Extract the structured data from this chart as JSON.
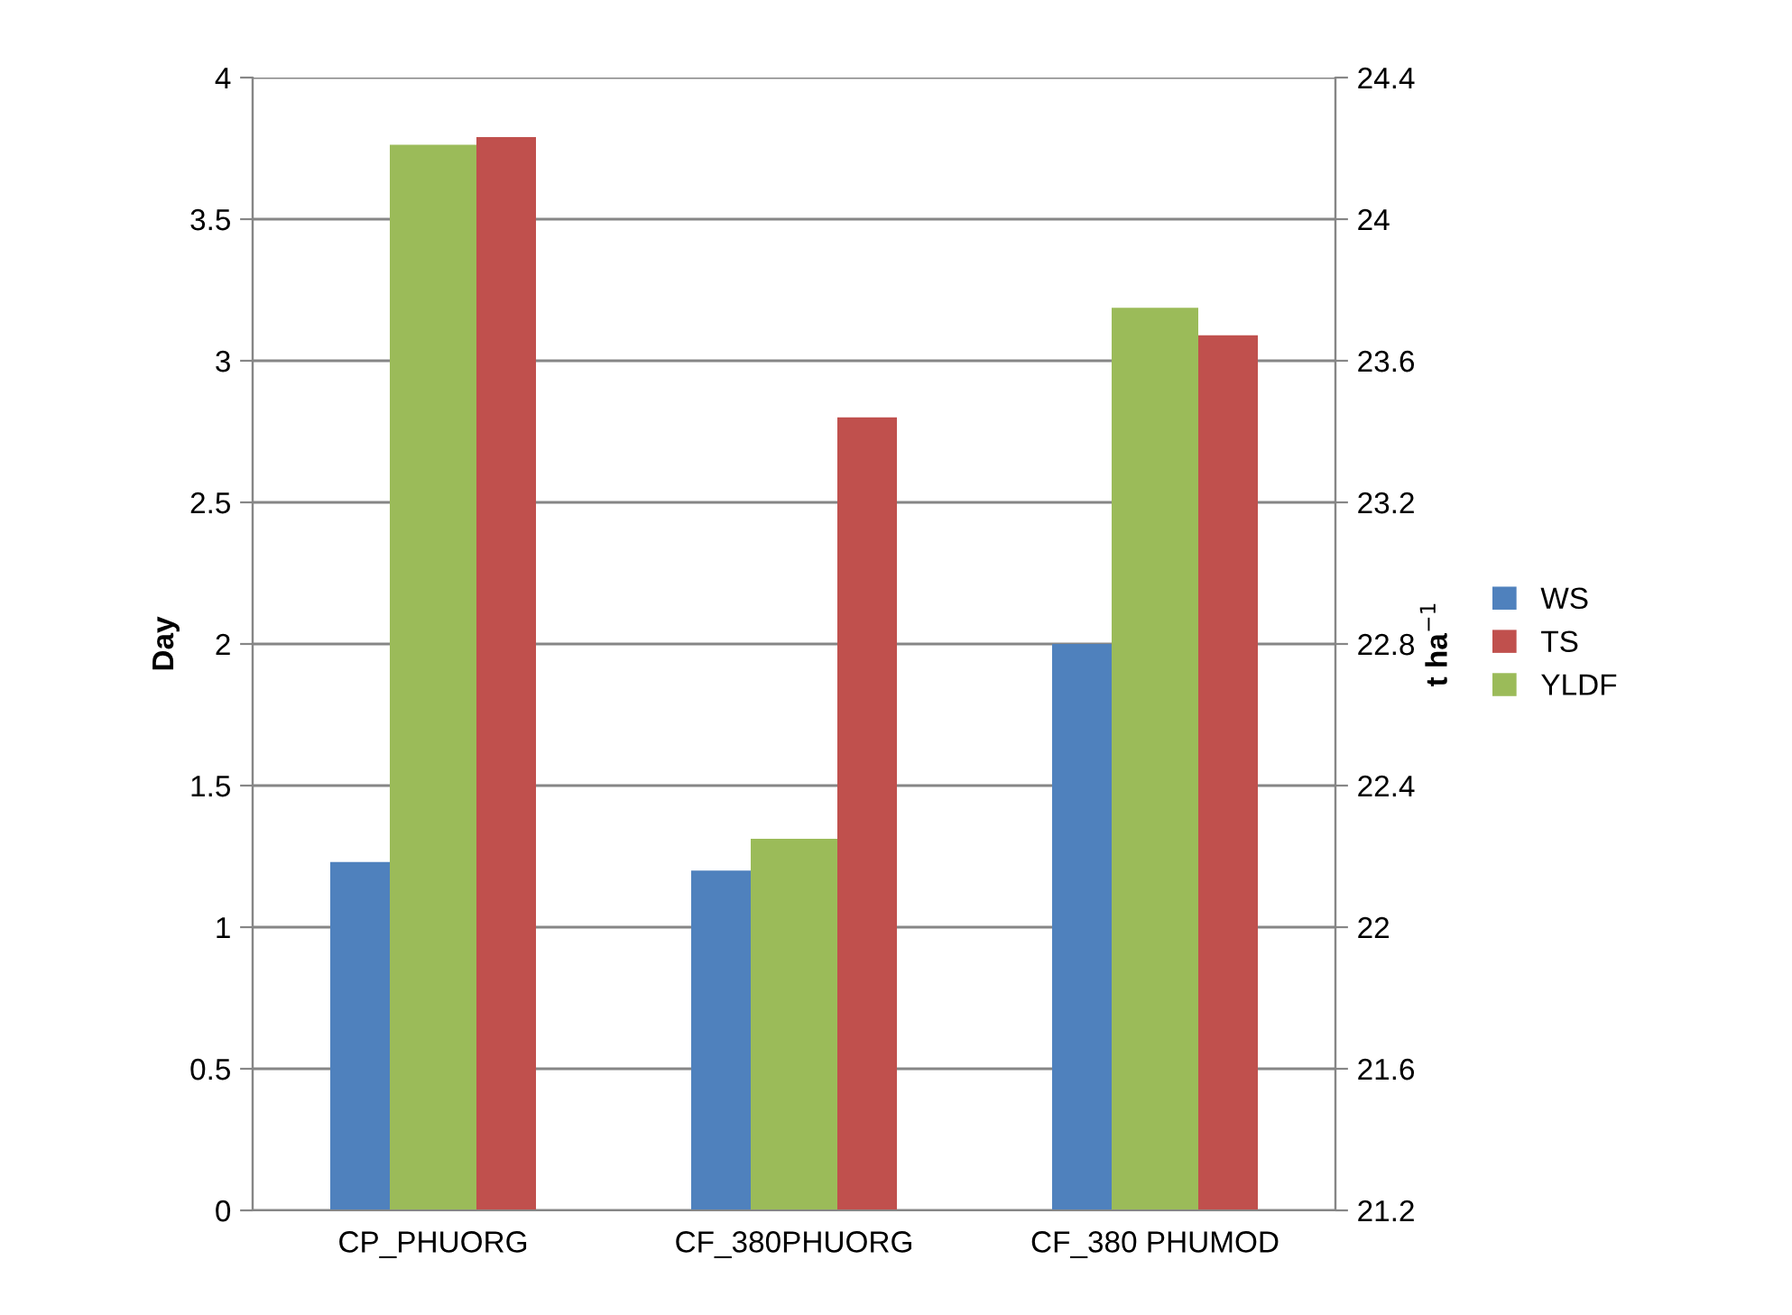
{
  "chart_data": {
    "type": "bar",
    "categories": [
      "CP_PHUORG",
      "CF_380PHUORG",
      "CF_380 PHUMOD"
    ],
    "ylabel": "Day",
    "y2label": "t ha$^{−1}$",
    "series": [
      {
        "name": "WS",
        "color": "#4f81bd",
        "values": [
          1.23,
          1.2,
          2.0
        ]
      },
      {
        "name": "TS",
        "color": "#c0504d",
        "values": [
          3.79,
          2.8,
          3.09
        ]
      },
      {
        "name": "YLDF",
        "color": "#9bbb59",
        "values": [
          24.21,
          22.25,
          23.75
        ],
        "axis": "y2"
      }
    ],
    "ylim": [
      0,
      4
    ],
    "yticks": [
      0,
      0.5,
      1,
      1.5,
      2,
      2.5,
      3,
      3.5,
      4
    ],
    "y2lim": [
      21.2,
      24.4
    ],
    "y2ticks": [
      21.2,
      21.6,
      22,
      22.4,
      22.8,
      23.2,
      23.6,
      24,
      24.4
    ],
    "grid": "y",
    "legend": "right"
  }
}
